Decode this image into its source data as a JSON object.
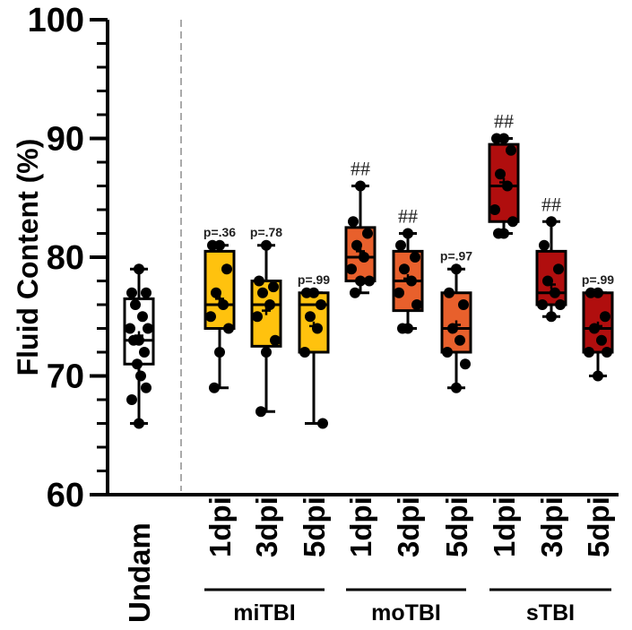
{
  "chart_data": {
    "type": "box",
    "ylabel": "Fluid Content (%)",
    "ylim": [
      60,
      100
    ],
    "yticks": [
      60,
      70,
      80,
      90,
      100
    ],
    "colors": {
      "undam": "#ffffff",
      "miTBI": "#ffc20e",
      "moTBI": "#e8602c",
      "sTBI": "#b00e0e"
    },
    "boxes": [
      {
        "label": "Undam",
        "group": "",
        "color_key": "undam",
        "min": 66,
        "q1": 71,
        "median": 73,
        "q3": 76.5,
        "max": 79,
        "mean": 73.4,
        "annotation": "",
        "points": [
          79,
          77,
          77,
          76,
          75,
          74,
          74,
          73,
          73,
          72,
          71,
          70,
          69,
          68,
          66
        ]
      },
      {
        "label": "1dpi",
        "group": "miTBI",
        "color_key": "miTBI",
        "min": 69,
        "q1": 74,
        "median": 76,
        "q3": 80.5,
        "max": 81,
        "mean": 76.5,
        "annotation": "p=.36",
        "points": [
          81,
          81,
          79,
          77,
          76,
          75,
          74,
          72,
          69
        ]
      },
      {
        "label": "3dpi",
        "group": "miTBI",
        "color_key": "miTBI",
        "min": 67,
        "q1": 72.5,
        "median": 76,
        "q3": 78,
        "max": 81,
        "mean": 75.5,
        "annotation": "p=.78",
        "points": [
          81,
          78,
          77.5,
          77,
          76,
          75,
          73,
          72,
          67
        ]
      },
      {
        "label": "5dpi",
        "group": "miTBI",
        "color_key": "miTBI",
        "min": 66,
        "q1": 72,
        "median": 76,
        "q3": 77,
        "max": 77,
        "mean": 74.2,
        "annotation": "p=.99",
        "points": [
          77,
          77,
          76,
          75,
          74,
          72,
          66
        ]
      },
      {
        "label": "1dpi",
        "group": "moTBI",
        "color_key": "moTBI",
        "min": 77,
        "q1": 78,
        "median": 80,
        "q3": 82.5,
        "max": 86,
        "mean": 80.5,
        "annotation": "##",
        "points": [
          86,
          83,
          82,
          81,
          80,
          79,
          78,
          78,
          77
        ]
      },
      {
        "label": "3dpi",
        "group": "moTBI",
        "color_key": "moTBI",
        "min": 74,
        "q1": 75.5,
        "median": 78,
        "q3": 80.5,
        "max": 82,
        "mean": 78.2,
        "annotation": "##",
        "points": [
          82,
          81,
          80,
          79,
          78,
          77,
          76,
          74,
          74
        ]
      },
      {
        "label": "5dpi",
        "group": "moTBI",
        "color_key": "moTBI",
        "min": 69,
        "q1": 72,
        "median": 74,
        "q3": 77,
        "max": 79,
        "mean": 74.3,
        "annotation": "p=.97",
        "points": [
          79,
          77,
          76,
          74,
          73,
          72,
          71,
          69
        ]
      },
      {
        "label": "1dpi",
        "group": "sTBI",
        "color_key": "sTBI",
        "min": 82,
        "q1": 83,
        "median": 86,
        "q3": 89.5,
        "max": 90,
        "mean": 86.3,
        "annotation": "##",
        "points": [
          90,
          90,
          89,
          87,
          86,
          84,
          83,
          82,
          82
        ]
      },
      {
        "label": "3dpi",
        "group": "sTBI",
        "color_key": "sTBI",
        "min": 75,
        "q1": 76,
        "median": 77,
        "q3": 80.5,
        "max": 83,
        "mean": 77.7,
        "annotation": "##",
        "points": [
          83,
          81,
          79,
          78,
          77,
          76,
          76,
          75
        ]
      },
      {
        "label": "5dpi",
        "group": "sTBI",
        "color_key": "sTBI",
        "min": 70,
        "q1": 72,
        "median": 74,
        "q3": 77,
        "max": 77,
        "mean": 74.2,
        "annotation": "p=.99",
        "points": [
          77,
          77,
          75,
          74,
          73,
          72,
          72,
          70
        ]
      }
    ],
    "groups": [
      "miTBI",
      "moTBI",
      "sTBI"
    ]
  }
}
